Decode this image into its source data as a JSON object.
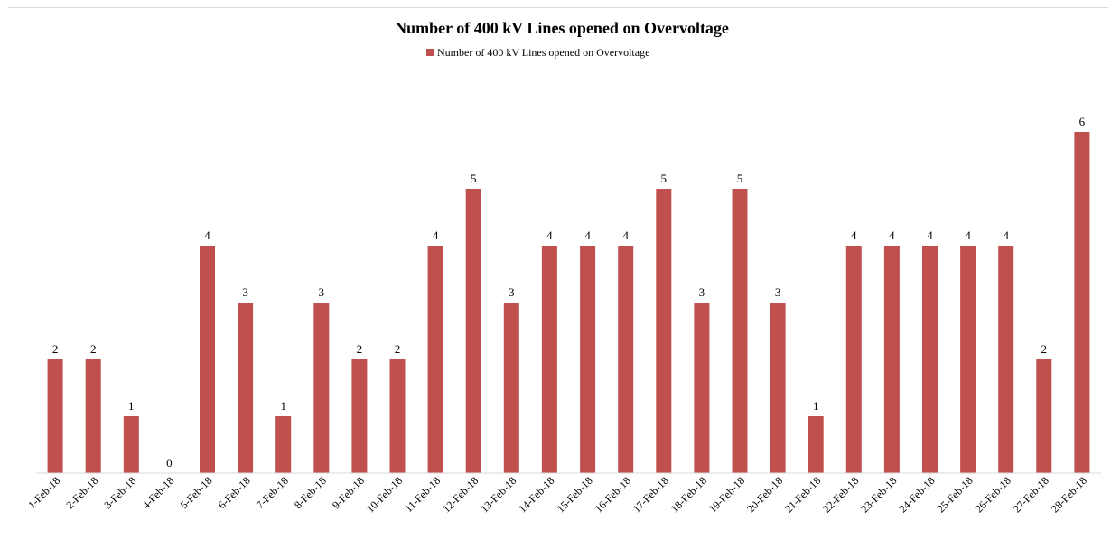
{
  "chart_data": {
    "type": "bar",
    "title": "Number of 400 kV Lines opened on Overvoltage",
    "xlabel": "",
    "ylabel": "",
    "categories": [
      "1-Feb-18",
      "2-Feb-18",
      "3-Feb-18",
      "4-Feb-18",
      "5-Feb-18",
      "6-Feb-18",
      "7-Feb-18",
      "8-Feb-18",
      "9-Feb-18",
      "10-Feb-18",
      "11-Feb-18",
      "12-Feb-18",
      "13-Feb-18",
      "14-Feb-18",
      "15-Feb-18",
      "16-Feb-18",
      "17-Feb-18",
      "18-Feb-18",
      "19-Feb-18",
      "20-Feb-18",
      "21-Feb-18",
      "22-Feb-18",
      "23-Feb-18",
      "24-Feb-18",
      "25-Feb-18",
      "26-Feb-18",
      "27-Feb-18",
      "28-Feb-18"
    ],
    "series": [
      {
        "name": "Number of 400 kV Lines opened on Overvoltage",
        "color": "#c0504d",
        "values": [
          2,
          2,
          1,
          0,
          4,
          3,
          1,
          3,
          2,
          2,
          4,
          5,
          3,
          4,
          4,
          4,
          5,
          3,
          5,
          3,
          1,
          4,
          4,
          4,
          4,
          4,
          2,
          6
        ]
      }
    ],
    "ylim": [
      0,
      6
    ],
    "grid": false,
    "legend_position": "top",
    "data_labels": true
  }
}
